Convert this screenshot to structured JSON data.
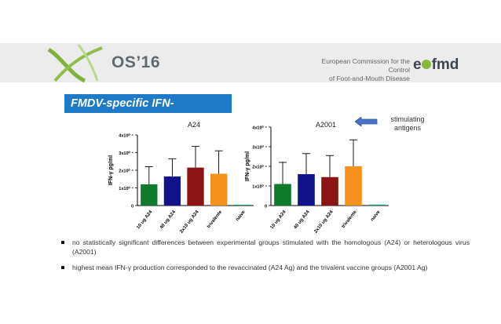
{
  "header": {
    "conference": "OS’16",
    "organisation_line1": "European Commission for the Control",
    "organisation_line2": "of Foot-and-Mouth Disease",
    "brand_prefix": "e",
    "brand_suffix": "fmd"
  },
  "slide_title": "FMDV-specific IFN-γproduction",
  "annotation": {
    "line1": "stimulating",
    "line2": "antigens"
  },
  "colors": {
    "title_bg": "#1e7ac6",
    "green": "#0f7a2a",
    "navy": "#12128a",
    "maroon": "#8c1414",
    "orange": "#f5921e",
    "naive": "#2a9e6a"
  },
  "bullets": [
    "no statistically significant differences between experimental groups stimulated with the homologous (A24) or heterologous virus (A2001)",
    "highest mean IFN-γ production corresponded to the revaccinated (A24 Ag) and the trivalent vaccine groups (A2001 Ag)"
  ],
  "chart_data": [
    {
      "type": "bar",
      "title": "A24",
      "ylabel": "IFN-γ pg/ml",
      "ylim": [
        0,
        40000
      ],
      "yticks": [
        0,
        10000,
        20000,
        30000,
        40000
      ],
      "ytick_labels": [
        "0",
        "1x10⁰ ⁴",
        "2x10⁰ ⁴",
        "3x10⁰ ⁴",
        "4x10⁰ ⁴"
      ],
      "categories": [
        "10 ug A24",
        "40 ug A24",
        "2x10 ug A24",
        "trivalente",
        "naive"
      ],
      "values": [
        12000,
        16500,
        21500,
        18000,
        500
      ],
      "errors": [
        10000,
        10000,
        12000,
        13000,
        0
      ],
      "colors": [
        "#0f7a2a",
        "#12128a",
        "#8c1414",
        "#f5921e",
        "#2a9e6a"
      ]
    },
    {
      "type": "bar",
      "title": "A2001",
      "ylabel": "IFN-γ pg/ml",
      "ylim": [
        0,
        40000
      ],
      "yticks": [
        0,
        10000,
        20000,
        30000,
        40000
      ],
      "ytick_labels": [
        "0",
        "1x10⁰ ⁴",
        "2x10⁰ ⁴",
        "3x10⁰ ⁴",
        "4x10⁰ ⁴"
      ],
      "categories": [
        "10 ug A24",
        "40 ug A24",
        "2x10 ug A24",
        "trivalente",
        "naive"
      ],
      "values": [
        11000,
        16000,
        14500,
        20000,
        500
      ],
      "errors": [
        11000,
        10500,
        11000,
        13500,
        0
      ],
      "colors": [
        "#0f7a2a",
        "#12128a",
        "#8c1414",
        "#f5921e",
        "#2a9e6a"
      ]
    }
  ]
}
